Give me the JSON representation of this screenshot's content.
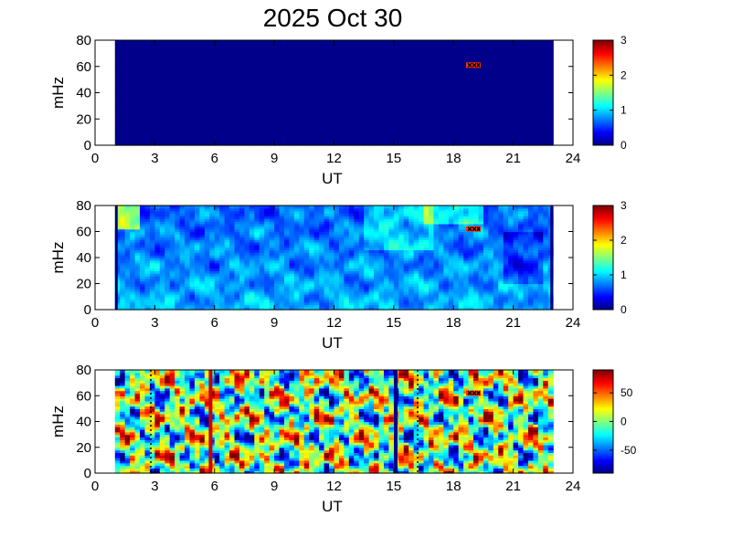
{
  "title": "2025 Oct 30",
  "colors": {
    "colormap": "jet",
    "background": "#ffffff"
  },
  "chart_data": [
    {
      "type": "heatmap",
      "xlabel": "UT",
      "ylabel": "mHz",
      "xlim": [
        0,
        24
      ],
      "ylim": [
        0,
        80
      ],
      "xticks": [
        "0",
        "3",
        "6",
        "9",
        "12",
        "15",
        "18",
        "21",
        "24"
      ],
      "yticks": [
        "0",
        "20",
        "40",
        "60",
        "80"
      ],
      "data_extent_x": [
        1,
        23
      ],
      "clim": [
        0,
        3
      ],
      "colorbar_ticks": [
        "0",
        "1",
        "2",
        "3"
      ],
      "pattern": "uniform",
      "marker": {
        "x": 19.0,
        "y": 61
      }
    },
    {
      "type": "heatmap",
      "xlabel": "UT",
      "ylabel": "mHz",
      "xlim": [
        0,
        24
      ],
      "ylim": [
        0,
        80
      ],
      "xticks": [
        "0",
        "3",
        "6",
        "9",
        "12",
        "15",
        "18",
        "21",
        "24"
      ],
      "yticks": [
        "0",
        "20",
        "40",
        "60",
        "80"
      ],
      "data_extent_x": [
        1,
        23
      ],
      "clim": [
        0,
        3
      ],
      "colorbar_ticks": [
        "0",
        "1",
        "2",
        "3"
      ],
      "pattern": "power",
      "marker": {
        "x": 19.0,
        "y": 62
      }
    },
    {
      "type": "heatmap",
      "xlabel": "UT",
      "ylabel": "mHz",
      "xlim": [
        0,
        24
      ],
      "ylim": [
        0,
        80
      ],
      "xticks": [
        "0",
        "3",
        "6",
        "9",
        "12",
        "15",
        "18",
        "21",
        "24"
      ],
      "yticks": [
        "0",
        "20",
        "40",
        "60",
        "80"
      ],
      "data_extent_x": [
        1,
        23
      ],
      "clim": [
        -90,
        90
      ],
      "colorbar_ticks": [
        "50",
        "0",
        "-50"
      ],
      "colorbar_tick_values": [
        50,
        0,
        -50
      ],
      "pattern": "phase",
      "marker": {
        "x": 19.0,
        "y": 62
      },
      "vertical_lines": [
        {
          "x": 2.8,
          "style": "dotted",
          "color": "#000000"
        },
        {
          "x": 5.8,
          "style": "solid",
          "color": "#cc0000"
        },
        {
          "x": 15.1,
          "style": "solid",
          "color": "#00008f"
        },
        {
          "x": 16.2,
          "style": "dotted",
          "color": "#000000"
        }
      ]
    }
  ]
}
